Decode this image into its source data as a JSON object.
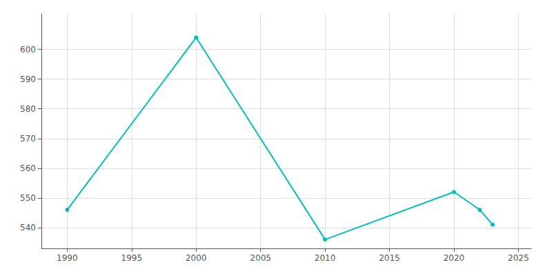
{
  "chart_data": {
    "type": "line",
    "x": [
      1990,
      2000,
      2010,
      2020,
      2022,
      2023
    ],
    "values": [
      546,
      604,
      536,
      552,
      546,
      541
    ],
    "color": "#00BFBF",
    "marker": "circle",
    "xlim": [
      1988,
      2026
    ],
    "ylim": [
      533,
      612
    ],
    "xticks": [
      1990,
      1995,
      2000,
      2005,
      2010,
      2015,
      2020,
      2025
    ],
    "yticks": [
      540,
      550,
      560,
      570,
      580,
      590,
      600
    ],
    "grid": true
  }
}
